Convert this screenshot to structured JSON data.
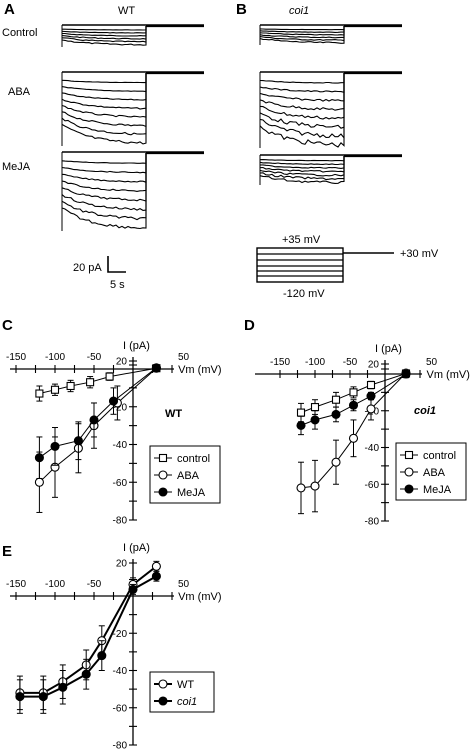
{
  "panels": {
    "A": "A",
    "B": "B",
    "C": "C",
    "D": "D",
    "E": "E"
  },
  "traces": {
    "wt_title": "WT",
    "coi1_title": "coi1",
    "row_labels": [
      "Control",
      "ABA",
      "MeJA"
    ],
    "scalebar": {
      "current": "20 pA",
      "time": "5 s"
    },
    "protocol": {
      "top": "+35 mV",
      "bottom": "-120 mV",
      "hold": "+30 mV"
    }
  },
  "chart_data": [
    {
      "id": "C",
      "type": "scatter",
      "title": "",
      "annotation": "WT",
      "xlabel": "Vm (mV)",
      "ylabel": "I (pA)",
      "xlim": [
        -150,
        50
      ],
      "ylim": [
        -80,
        20
      ],
      "xticks": [
        -150,
        -100,
        -50,
        50
      ],
      "yticks": [
        20,
        -20,
        -40,
        -60,
        -80
      ],
      "legend_position": "bottom-right",
      "series": [
        {
          "name": "control",
          "marker": "square-open",
          "x": [
            -120,
            -100,
            -80,
            -55,
            -30,
            30
          ],
          "y": [
            -13,
            -11,
            -9,
            -7,
            -4,
            2
          ],
          "err": [
            4,
            3,
            3,
            3,
            2,
            2
          ]
        },
        {
          "name": "ABA",
          "marker": "circle-open",
          "x": [
            -120,
            -100,
            -70,
            -50,
            -20,
            30
          ],
          "y": [
            -60,
            -52,
            -42,
            -30,
            -18,
            2
          ],
          "err": [
            16,
            16,
            13,
            12,
            9,
            2
          ]
        },
        {
          "name": "MeJA",
          "marker": "circle-filled",
          "x": [
            -120,
            -100,
            -70,
            -50,
            -25,
            30
          ],
          "y": [
            -47,
            -41,
            -38,
            -27,
            -17,
            3
          ],
          "err": [
            11,
            10,
            10,
            9,
            7,
            2
          ]
        }
      ]
    },
    {
      "id": "D",
      "type": "scatter",
      "title": "",
      "annotation": "coi1",
      "xlabel": "Vm (mV)",
      "ylabel": "I (pA)",
      "xlim": [
        -150,
        50
      ],
      "ylim": [
        -80,
        20
      ],
      "xticks": [
        -150,
        -100,
        -50,
        50
      ],
      "yticks": [
        20,
        -20,
        -40,
        -60,
        -80
      ],
      "legend_position": "bottom-right",
      "series": [
        {
          "name": "control",
          "marker": "square-open",
          "x": [
            -120,
            -100,
            -70,
            -45,
            -20,
            30
          ],
          "y": [
            -21,
            -18,
            -14,
            -10,
            -6,
            1
          ],
          "err": [
            5,
            4,
            4,
            3,
            2,
            2
          ]
        },
        {
          "name": "ABA",
          "marker": "circle-open",
          "x": [
            -120,
            -100,
            -70,
            -45,
            -20,
            30
          ],
          "y": [
            -62,
            -61,
            -48,
            -35,
            -19,
            2
          ],
          "err": [
            14,
            14,
            12,
            10,
            6,
            2
          ]
        },
        {
          "name": "MeJA",
          "marker": "circle-filled",
          "x": [
            -120,
            -100,
            -70,
            -45,
            -20,
            30
          ],
          "y": [
            -28,
            -25,
            -22,
            -17,
            -12,
            0
          ],
          "err": [
            5,
            5,
            4,
            3,
            2,
            2
          ]
        }
      ]
    },
    {
      "id": "E",
      "type": "line",
      "title": "",
      "xlabel": "Vm (mV)",
      "ylabel": "I (pA)",
      "xlim": [
        -150,
        50
      ],
      "ylim": [
        -80,
        20
      ],
      "xticks": [
        -150,
        -100,
        -50,
        50
      ],
      "yticks": [
        20,
        -20,
        -40,
        -60,
        -80
      ],
      "legend_position": "bottom-right",
      "series": [
        {
          "name": "WT",
          "marker": "circle-open",
          "x": [
            -145,
            -115,
            -90,
            -60,
            -40,
            0,
            30
          ],
          "y": [
            -52,
            -52,
            -46,
            -37,
            -24,
            7,
            18
          ],
          "err": [
            9,
            9,
            9,
            8,
            8,
            4,
            3
          ]
        },
        {
          "name": "coi1",
          "marker": "circle-filled",
          "x": [
            -145,
            -115,
            -90,
            -60,
            -40,
            0,
            30
          ],
          "y": [
            -54,
            -54,
            -49,
            -42,
            -32,
            4,
            12
          ],
          "err": [
            9,
            9,
            9,
            8,
            8,
            3,
            3
          ]
        }
      ]
    }
  ]
}
